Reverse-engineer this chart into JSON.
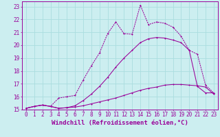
{
  "background_color": "#cceef0",
  "grid_color": "#aadddf",
  "line_color": "#990099",
  "xlabel": "Windchill (Refroidissement éolien,°C)",
  "xlabel_fontsize": 6.5,
  "tick_fontsize": 5.5,
  "xlim": [
    -0.5,
    23.5
  ],
  "ylim": [
    15,
    23.4
  ],
  "yticks": [
    15,
    16,
    17,
    18,
    19,
    20,
    21,
    22,
    23
  ],
  "xticks": [
    0,
    1,
    2,
    3,
    4,
    5,
    6,
    7,
    8,
    9,
    10,
    11,
    12,
    13,
    14,
    15,
    16,
    17,
    18,
    19,
    20,
    21,
    22,
    23
  ],
  "line1_x": [
    0,
    1,
    2,
    3,
    4,
    5,
    6,
    7,
    8,
    9,
    10,
    11,
    12,
    13,
    14,
    15,
    16,
    17,
    18,
    19,
    20,
    21,
    22,
    23
  ],
  "line1_y": [
    15.1,
    15.25,
    15.35,
    15.25,
    15.1,
    15.15,
    15.2,
    15.3,
    15.45,
    15.6,
    15.75,
    15.9,
    16.1,
    16.3,
    16.5,
    16.65,
    16.75,
    16.9,
    16.95,
    16.95,
    16.9,
    16.85,
    16.75,
    16.2
  ],
  "line2_x": [
    0,
    1,
    2,
    3,
    4,
    5,
    6,
    7,
    8,
    9,
    10,
    11,
    12,
    13,
    14,
    15,
    16,
    17,
    18,
    19,
    20,
    21,
    22,
    23
  ],
  "line2_y": [
    15.1,
    15.25,
    15.35,
    15.25,
    15.1,
    15.15,
    15.3,
    15.7,
    16.2,
    16.8,
    17.5,
    18.3,
    19.0,
    19.6,
    20.2,
    20.5,
    20.6,
    20.55,
    20.4,
    20.2,
    19.6,
    16.8,
    16.3,
    16.3
  ],
  "line3_x": [
    0,
    1,
    2,
    3,
    4,
    5,
    6,
    7,
    8,
    9,
    10,
    11,
    12,
    13,
    14,
    15,
    16,
    17,
    18,
    19,
    20,
    21,
    22,
    23
  ],
  "line3_y": [
    15.1,
    15.25,
    15.35,
    15.25,
    15.9,
    16.0,
    16.1,
    17.3,
    18.4,
    19.4,
    20.9,
    21.8,
    20.9,
    20.85,
    23.1,
    21.6,
    21.8,
    21.7,
    21.4,
    20.7,
    19.6,
    19.3,
    16.9,
    16.3
  ]
}
